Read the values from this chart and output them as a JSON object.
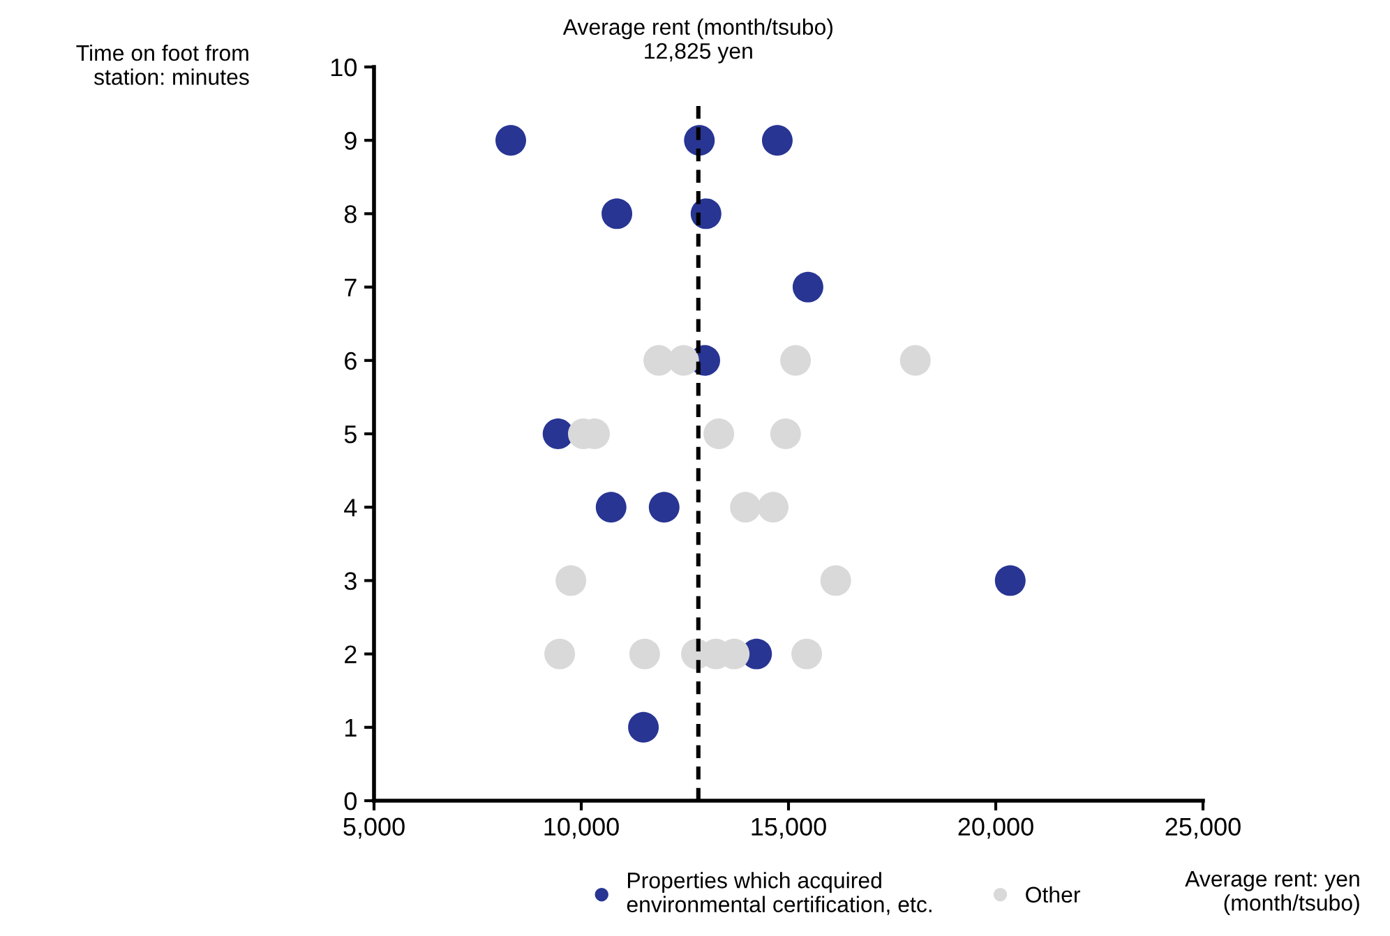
{
  "chart_data": {
    "type": "scatter",
    "xlabel": "Average rent: yen\n(month/tsubo)",
    "ylabel": "Time on foot from\nstation: minutes",
    "xlim": [
      5000,
      25000
    ],
    "xticks": [
      {
        "value": 5000,
        "label": "5,000"
      },
      {
        "value": 10000,
        "label": "10,000"
      },
      {
        "value": 15000,
        "label": "15,000"
      },
      {
        "value": 20000,
        "label": "20,000"
      },
      {
        "value": 25000,
        "label": "25,000"
      }
    ],
    "ylim": [
      0,
      10
    ],
    "yticks": [
      0,
      1,
      2,
      3,
      4,
      5,
      6,
      7,
      8,
      9,
      10
    ],
    "marker": "circle",
    "grid": false,
    "legend": "bottom",
    "ref_lines": [
      {
        "axis": "x",
        "value": 12825,
        "label": "Average rent (month/tsubo)\n12,825 yen",
        "color": "#000000",
        "line_style": "dashed"
      }
    ],
    "series": [
      {
        "name": "Properties which acquired\nenvironmental certification, etc.",
        "color": "#283593",
        "x": [
          8300,
          12850,
          14730,
          10860,
          13010,
          15470,
          12980,
          9440,
          10720,
          12000,
          20350,
          14230,
          11500
        ],
        "values": [
          9,
          9,
          9,
          8,
          8,
          7,
          6,
          5,
          4,
          4,
          3,
          2,
          1
        ]
      },
      {
        "name": "Other",
        "color": "#d9d9d9",
        "x": [
          11870,
          12470,
          15170,
          18060,
          10050,
          10320,
          13320,
          14930,
          13960,
          14630,
          9750,
          16140,
          9480,
          11530,
          12780,
          13250,
          13690,
          15440
        ],
        "values": [
          6,
          6,
          6,
          6,
          5,
          5,
          5,
          5,
          4,
          4,
          3,
          3,
          2,
          2,
          2,
          2,
          2,
          2
        ]
      }
    ]
  }
}
